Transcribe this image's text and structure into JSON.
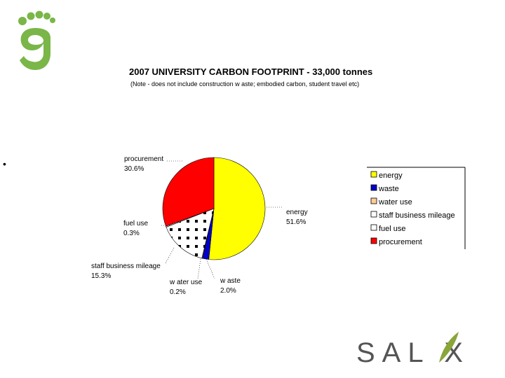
{
  "bullet": "•",
  "chart_data": {
    "type": "pie",
    "title": "2007 UNIVERSITY CARBON FOOTPRINT - 33,000 tonnes",
    "subtitle": "(Note - does not include construction w aste; embodied carbon, student travel etc)",
    "slices": [
      {
        "name": "energy",
        "value": 51.6,
        "label": "51.6%",
        "color": "#ffff00",
        "pattern": "solid"
      },
      {
        "name": "waste",
        "value": 2.0,
        "label": "2.0%",
        "color": "#0000cc",
        "pattern": "solid"
      },
      {
        "name": "water use",
        "value": 0.2,
        "label": "0.2%",
        "color": "#ffcc99",
        "pattern": "solid"
      },
      {
        "name": "staff business mileage",
        "value": 15.3,
        "label": "15.3%",
        "color": "#ffffff",
        "pattern": "dots"
      },
      {
        "name": "fuel use",
        "value": 0.3,
        "label": "0.3%",
        "color": "#ffffff",
        "pattern": "dots-fine"
      },
      {
        "name": "procurement",
        "value": 30.6,
        "label": "30.6%",
        "color": "#ff0000",
        "pattern": "solid"
      }
    ],
    "slice_label_names": {
      "energy": "energy",
      "waste": "w aste",
      "water use": "w ater use",
      "staff business mileage": "staff business mileage",
      "fuel use": "fuel use",
      "procurement": "procurement"
    },
    "legend": [
      "energy",
      "waste",
      "water use",
      "staff business mileage",
      "fuel use",
      "procurement"
    ],
    "legend_position": "right"
  },
  "brand": {
    "logo_text": "SAL X",
    "logo_color": "#555555",
    "leaf_color": "#8aa53a",
    "foot_color": "#7ab648"
  }
}
